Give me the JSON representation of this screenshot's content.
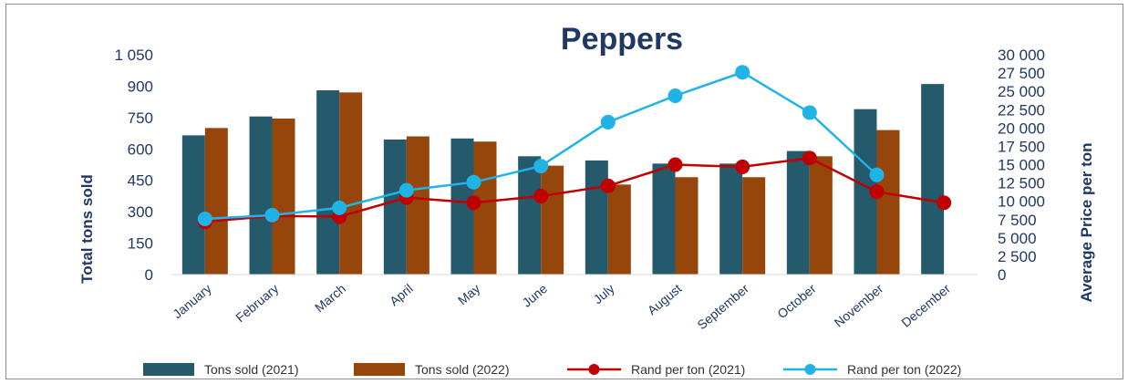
{
  "chart_data": {
    "type": "bar",
    "title": "Peppers",
    "ylabel": "Total tons sold",
    "y2label": "Average Price per ton",
    "ylim": [
      0,
      1050
    ],
    "y2lim": [
      0,
      30000
    ],
    "yticks": [
      "0",
      "150",
      "300",
      "450",
      "600",
      "750",
      "900",
      "1 050"
    ],
    "y2ticks": [
      "0",
      "2 500",
      "5 000",
      "7 500",
      "10 000",
      "12 500",
      "15 000",
      "17 500",
      "20 000",
      "22 500",
      "25 000",
      "27 500",
      "30 000"
    ],
    "categories": [
      "January",
      "February",
      "March",
      "April",
      "May",
      "June",
      "July",
      "August",
      "September",
      "October",
      "November",
      "December"
    ],
    "series": [
      {
        "name": "Tons sold (2021)",
        "type": "bar",
        "axis": "left",
        "color": "#245a6b",
        "values": [
          665,
          755,
          880,
          645,
          650,
          565,
          545,
          530,
          530,
          590,
          790,
          910
        ]
      },
      {
        "name": "Tons sold (2022)",
        "type": "bar",
        "axis": "left",
        "color": "#97460b",
        "values": [
          700,
          745,
          870,
          660,
          635,
          520,
          430,
          465,
          465,
          565,
          690,
          null
        ]
      },
      {
        "name": "Rand per ton (2021)",
        "type": "line",
        "axis": "right",
        "color": "#c00000",
        "values": [
          7200,
          8000,
          7900,
          10500,
          9800,
          10700,
          12100,
          15000,
          14700,
          15900,
          11300,
          9800
        ]
      },
      {
        "name": "Rand per ton (2022)",
        "type": "line",
        "axis": "right",
        "color": "#1fb3e6",
        "values": [
          7600,
          8100,
          9100,
          11500,
          12600,
          14800,
          20800,
          24400,
          27600,
          22100,
          13600,
          null
        ]
      }
    ],
    "legend": "bottom",
    "grid": false
  }
}
